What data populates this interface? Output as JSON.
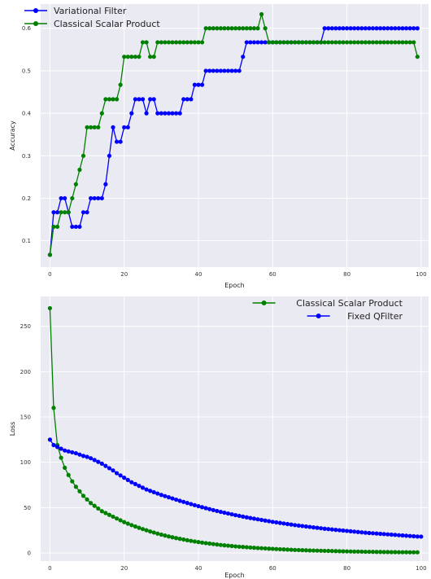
{
  "chart_data": [
    {
      "type": "line",
      "xlabel": "Epoch",
      "ylabel": "Accuracy",
      "xlim": [
        -2.5,
        102
      ],
      "ylim": [
        0.038,
        0.657
      ],
      "xticks": [
        0,
        20,
        40,
        60,
        80,
        100
      ],
      "yticks": [
        0.1,
        0.2,
        0.3,
        0.4,
        0.5,
        0.6
      ],
      "grid": true,
      "legend": "top-left",
      "x_start": 0,
      "series": [
        {
          "name": "Variational Filter",
          "color": "#0000ff",
          "values": [
            0.067,
            0.167,
            0.167,
            0.2,
            0.2,
            0.167,
            0.133,
            0.133,
            0.133,
            0.167,
            0.167,
            0.2,
            0.2,
            0.2,
            0.2,
            0.233,
            0.3,
            0.367,
            0.333,
            0.333,
            0.367,
            0.367,
            0.4,
            0.433,
            0.433,
            0.433,
            0.4,
            0.433,
            0.433,
            0.4,
            0.4,
            0.4,
            0.4,
            0.4,
            0.4,
            0.4,
            0.433,
            0.433,
            0.433,
            0.467,
            0.467,
            0.467,
            0.5,
            0.5,
            0.5,
            0.5,
            0.5,
            0.5,
            0.5,
            0.5,
            0.5,
            0.5,
            0.533,
            0.567,
            0.567,
            0.567,
            0.567,
            0.567,
            0.567,
            0.567,
            0.567,
            0.567,
            0.567,
            0.567,
            0.567,
            0.567,
            0.567,
            0.567,
            0.567,
            0.567,
            0.567,
            0.567,
            0.567,
            0.567,
            0.6,
            0.6,
            0.6,
            0.6,
            0.6,
            0.6,
            0.6,
            0.6,
            0.6,
            0.6,
            0.6,
            0.6,
            0.6,
            0.6,
            0.6,
            0.6,
            0.6,
            0.6,
            0.6,
            0.6,
            0.6,
            0.6,
            0.6,
            0.6,
            0.6,
            0.6
          ]
        },
        {
          "name": "Classical Scalar Product",
          "color": "#008000",
          "values": [
            0.067,
            0.133,
            0.133,
            0.167,
            0.167,
            0.167,
            0.2,
            0.233,
            0.267,
            0.3,
            0.367,
            0.367,
            0.367,
            0.367,
            0.4,
            0.433,
            0.433,
            0.433,
            0.433,
            0.467,
            0.533,
            0.533,
            0.533,
            0.533,
            0.533,
            0.567,
            0.567,
            0.533,
            0.533,
            0.567,
            0.567,
            0.567,
            0.567,
            0.567,
            0.567,
            0.567,
            0.567,
            0.567,
            0.567,
            0.567,
            0.567,
            0.567,
            0.6,
            0.6,
            0.6,
            0.6,
            0.6,
            0.6,
            0.6,
            0.6,
            0.6,
            0.6,
            0.6,
            0.6,
            0.6,
            0.6,
            0.6,
            0.633,
            0.6,
            0.567,
            0.567,
            0.567,
            0.567,
            0.567,
            0.567,
            0.567,
            0.567,
            0.567,
            0.567,
            0.567,
            0.567,
            0.567,
            0.567,
            0.567,
            0.567,
            0.567,
            0.567,
            0.567,
            0.567,
            0.567,
            0.567,
            0.567,
            0.567,
            0.567,
            0.567,
            0.567,
            0.567,
            0.567,
            0.567,
            0.567,
            0.567,
            0.567,
            0.567,
            0.567,
            0.567,
            0.567,
            0.567,
            0.567,
            0.567,
            0.533
          ]
        }
      ]
    },
    {
      "type": "line",
      "xlabel": "Epoch",
      "ylabel": "Loss",
      "xlim": [
        -2.5,
        102
      ],
      "ylim": [
        -9,
        283
      ],
      "xticks": [
        0,
        20,
        40,
        60,
        80,
        100
      ],
      "yticks": [
        0,
        50,
        100,
        150,
        200,
        250
      ],
      "grid": true,
      "legend": "top-right",
      "x_start": 0,
      "series": [
        {
          "name": "Classical Scalar Product",
          "color": "#008000",
          "values": [
            270,
            160,
            119,
            105,
            94,
            86,
            79,
            73,
            68,
            63,
            59,
            55,
            52,
            49,
            46,
            44,
            42,
            40,
            38,
            36,
            34,
            32.3,
            30.7,
            29.2,
            27.7,
            26.3,
            25,
            23.7,
            22.5,
            21.3,
            20.2,
            19.2,
            18.2,
            17.3,
            16.4,
            15.6,
            14.8,
            14,
            13.3,
            12.6,
            12,
            11.4,
            10.8,
            10.3,
            9.8,
            9.3,
            8.8,
            8.4,
            8,
            7.6,
            7.2,
            6.9,
            6.6,
            6.3,
            6,
            5.7,
            5.4,
            5.2,
            5,
            4.7,
            4.5,
            4.3,
            4.1,
            3.9,
            3.7,
            3.5,
            3.3,
            3.2,
            3,
            2.9,
            2.7,
            2.6,
            2.5,
            2.4,
            2.3,
            2.2,
            2.1,
            2,
            1.9,
            1.8,
            1.7,
            1.6,
            1.5,
            1.5,
            1.4,
            1.3,
            1.3,
            1.2,
            1.1,
            1.1,
            1,
            1,
            0.9,
            0.9,
            0.8,
            0.8,
            0.8,
            0.7,
            0.7,
            0.7
          ]
        },
        {
          "name": "Fixed QFilter",
          "color": "#0000ff",
          "values": [
            125,
            119,
            117,
            115,
            113,
            112,
            111,
            110,
            108.5,
            107,
            106,
            104.5,
            102.5,
            100.5,
            98.5,
            96,
            93.5,
            91,
            88,
            85.5,
            83,
            80.5,
            78,
            76,
            74,
            72,
            70,
            68.5,
            67,
            65.5,
            64,
            62.7,
            61.4,
            60.1,
            58.8,
            57.5,
            56.3,
            55.1,
            53.9,
            52.7,
            51.6,
            50.5,
            49.4,
            48.3,
            47.3,
            46.3,
            45.3,
            44.4,
            43.5,
            42.6,
            41.7,
            40.9,
            40.1,
            39.3,
            38.5,
            37.8,
            37.1,
            36.4,
            35.7,
            35,
            34.3,
            33.7,
            33.1,
            32.5,
            31.9,
            31.3,
            30.7,
            30.2,
            29.7,
            29.2,
            28.7,
            28.2,
            27.7,
            27.2,
            26.7,
            26.3,
            25.9,
            25.5,
            25.1,
            24.7,
            24.3,
            23.9,
            23.5,
            23.1,
            22.7,
            22.3,
            22,
            21.7,
            21.4,
            21.1,
            20.8,
            20.5,
            20.2,
            19.9,
            19.6,
            19.3,
            19,
            18.7,
            18.4,
            18.1,
            18
          ]
        }
      ]
    }
  ]
}
